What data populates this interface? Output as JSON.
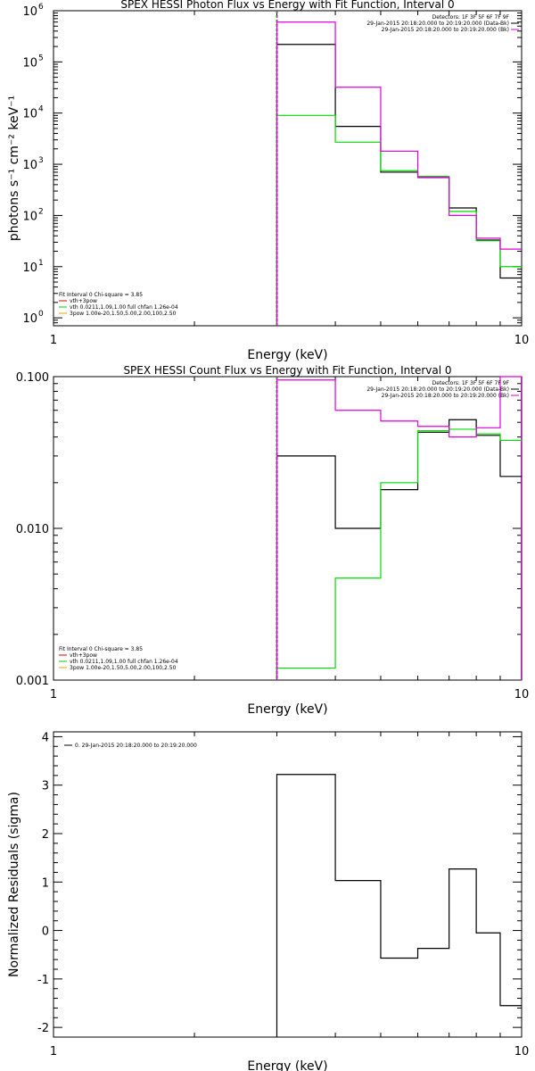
{
  "chart_data": [
    {
      "type": "line",
      "title": "SPEX HESSI Photon Flux vs Energy with Fit Function, Interval 0",
      "xlabel": "Energy (keV)",
      "ylabel": "photons s⁻¹ cm⁻² keV⁻¹",
      "xscale": "log",
      "yscale": "log",
      "xlim": [
        1,
        10
      ],
      "ylim": [
        0.7,
        1000000
      ],
      "xticks": [
        {
          "v": 1,
          "label": "1"
        },
        {
          "v": 10,
          "label": "10"
        }
      ],
      "yticks": [
        {
          "v": 1,
          "base": "10",
          "exp": "0"
        },
        {
          "v": 10,
          "base": "10",
          "exp": "1"
        },
        {
          "v": 100,
          "base": "10",
          "exp": "2"
        },
        {
          "v": 1000,
          "base": "10",
          "exp": "3"
        },
        {
          "v": 10000,
          "base": "10",
          "exp": "4"
        },
        {
          "v": 100000,
          "base": "10",
          "exp": "5"
        },
        {
          "v": 1000000,
          "base": "10",
          "exp": "6"
        }
      ],
      "edges": [
        3,
        4,
        5,
        6,
        7,
        8,
        9,
        10
      ],
      "series": [
        {
          "color": "#000000",
          "values": [
            220000,
            5500,
            700,
            550,
            140,
            33,
            6
          ]
        },
        {
          "color": "#00dd00",
          "values": [
            9000,
            2700,
            750,
            580,
            120,
            32,
            10
          ]
        },
        {
          "color": "#dd00dd",
          "values": [
            600000,
            32000,
            1800,
            560,
            100,
            36,
            22
          ]
        }
      ],
      "vlines": [
        {
          "x": 3,
          "colors": [
            "#00cc00",
            "#dd00dd"
          ]
        }
      ],
      "legend_left": {
        "placement": "bottom-left",
        "header": "Fit Interval  0    Chi-square = 3.85",
        "items": [
          {
            "color": "#dd0000",
            "text": "vth+3pow"
          },
          {
            "color": "#00cc00",
            "text": "vth 0.0211,1.09,1.00  full chfan 1.26e-04"
          },
          {
            "color": "#ddaa00",
            "text": "3pow 1.00e-20,1.50,5.00,2.00,100,2.50"
          }
        ]
      },
      "legend_right": {
        "placement": "top-right",
        "header": "Detectors: 1F 3F 5F 6F 7F 9F",
        "items": [
          {
            "color": "#000000",
            "text": "29-Jan-2015 20:18:20.000 to 20:19:20.000 (Data-Bk)"
          },
          {
            "color": "#dd00dd",
            "text": "29-Jan-2015 20:18:20.000 to 20:19:20.000 (Bk)"
          }
        ]
      }
    },
    {
      "type": "line",
      "title": "SPEX HESSI Count Flux vs Energy with Fit Function, Interval 0",
      "xlabel": "Energy (keV)",
      "ylabel": "",
      "xscale": "log",
      "yscale": "log",
      "xlim": [
        1,
        10
      ],
      "ylim": [
        0.001,
        0.1
      ],
      "xticks": [
        {
          "v": 1,
          "label": "1"
        },
        {
          "v": 10,
          "label": "10"
        }
      ],
      "yticks": [
        {
          "v": 0.001,
          "label": "0.001"
        },
        {
          "v": 0.01,
          "label": "0.010"
        },
        {
          "v": 0.1,
          "label": "0.100"
        }
      ],
      "edges": [
        3,
        4,
        5,
        6,
        7,
        8,
        9,
        10
      ],
      "series": [
        {
          "color": "#000000",
          "values": [
            0.03,
            0.01,
            0.018,
            0.043,
            0.052,
            0.041,
            0.022
          ]
        },
        {
          "color": "#00dd00",
          "values": [
            0.0012,
            0.0047,
            0.02,
            0.044,
            0.045,
            0.042,
            0.038
          ]
        },
        {
          "color": "#dd00dd",
          "values": [
            0.095,
            0.06,
            0.051,
            0.047,
            0.04,
            0.046,
            0.1
          ]
        }
      ],
      "vlines": [
        {
          "x": 3,
          "colors": [
            "#00cc00",
            "#dd00dd"
          ]
        },
        {
          "x": 10,
          "colors": [
            "#dd00dd"
          ]
        }
      ],
      "legend_left": {
        "placement": "bottom-left",
        "header": "Fit Interval  0    Chi-square = 3.85",
        "items": [
          {
            "color": "#dd0000",
            "text": "vth+3pow"
          },
          {
            "color": "#00cc00",
            "text": "vth 0.0211,1.09,1.00  full chfan 1.26e-04"
          },
          {
            "color": "#ddaa00",
            "text": "3pow 1.00e-20,1.50,5.00,2.00,100,2.50"
          }
        ]
      },
      "legend_right": {
        "placement": "top-right",
        "header": "Detectors: 1F 3F 5F 6F 7F 9F",
        "items": [
          {
            "color": "#000000",
            "text": "29-Jan-2015 20:18:20.000 to 20:19:20.000 (Data-Bk)"
          },
          {
            "color": "#dd00dd",
            "text": "29-Jan-2015 20:18:20.000 to 20:19:20.000 (Bk)"
          }
        ]
      }
    },
    {
      "type": "line",
      "title": "",
      "xlabel": "Energy (keV)",
      "ylabel": "Normalized Residuals (sigma)",
      "xscale": "log",
      "yscale": "linear",
      "xlim": [
        1,
        10
      ],
      "ylim": [
        -2.2,
        4.1
      ],
      "xticks": [
        {
          "v": 1,
          "label": "1"
        },
        {
          "v": 10,
          "label": "10"
        }
      ],
      "yticks": [
        {
          "v": -2,
          "label": "-2"
        },
        {
          "v": -1,
          "label": "-1"
        },
        {
          "v": 0,
          "label": "0"
        },
        {
          "v": 1,
          "label": "1"
        },
        {
          "v": 2,
          "label": "2"
        },
        {
          "v": 3,
          "label": "3"
        },
        {
          "v": 4,
          "label": "4"
        }
      ],
      "edges": [
        3,
        4,
        5,
        6,
        7,
        8,
        9,
        10
      ],
      "series": [
        {
          "color": "#000000",
          "values": [
            3.22,
            1.03,
            -0.57,
            -0.37,
            1.27,
            -0.05,
            -1.55
          ]
        }
      ],
      "vlines": [],
      "legend_left": {
        "placement": "top-left",
        "header": "",
        "items": [
          {
            "color": "#000000",
            "text": "0. 29-Jan-2015 20:18:20.000 to 20:19:20.000"
          }
        ]
      },
      "legend_right": null
    }
  ]
}
